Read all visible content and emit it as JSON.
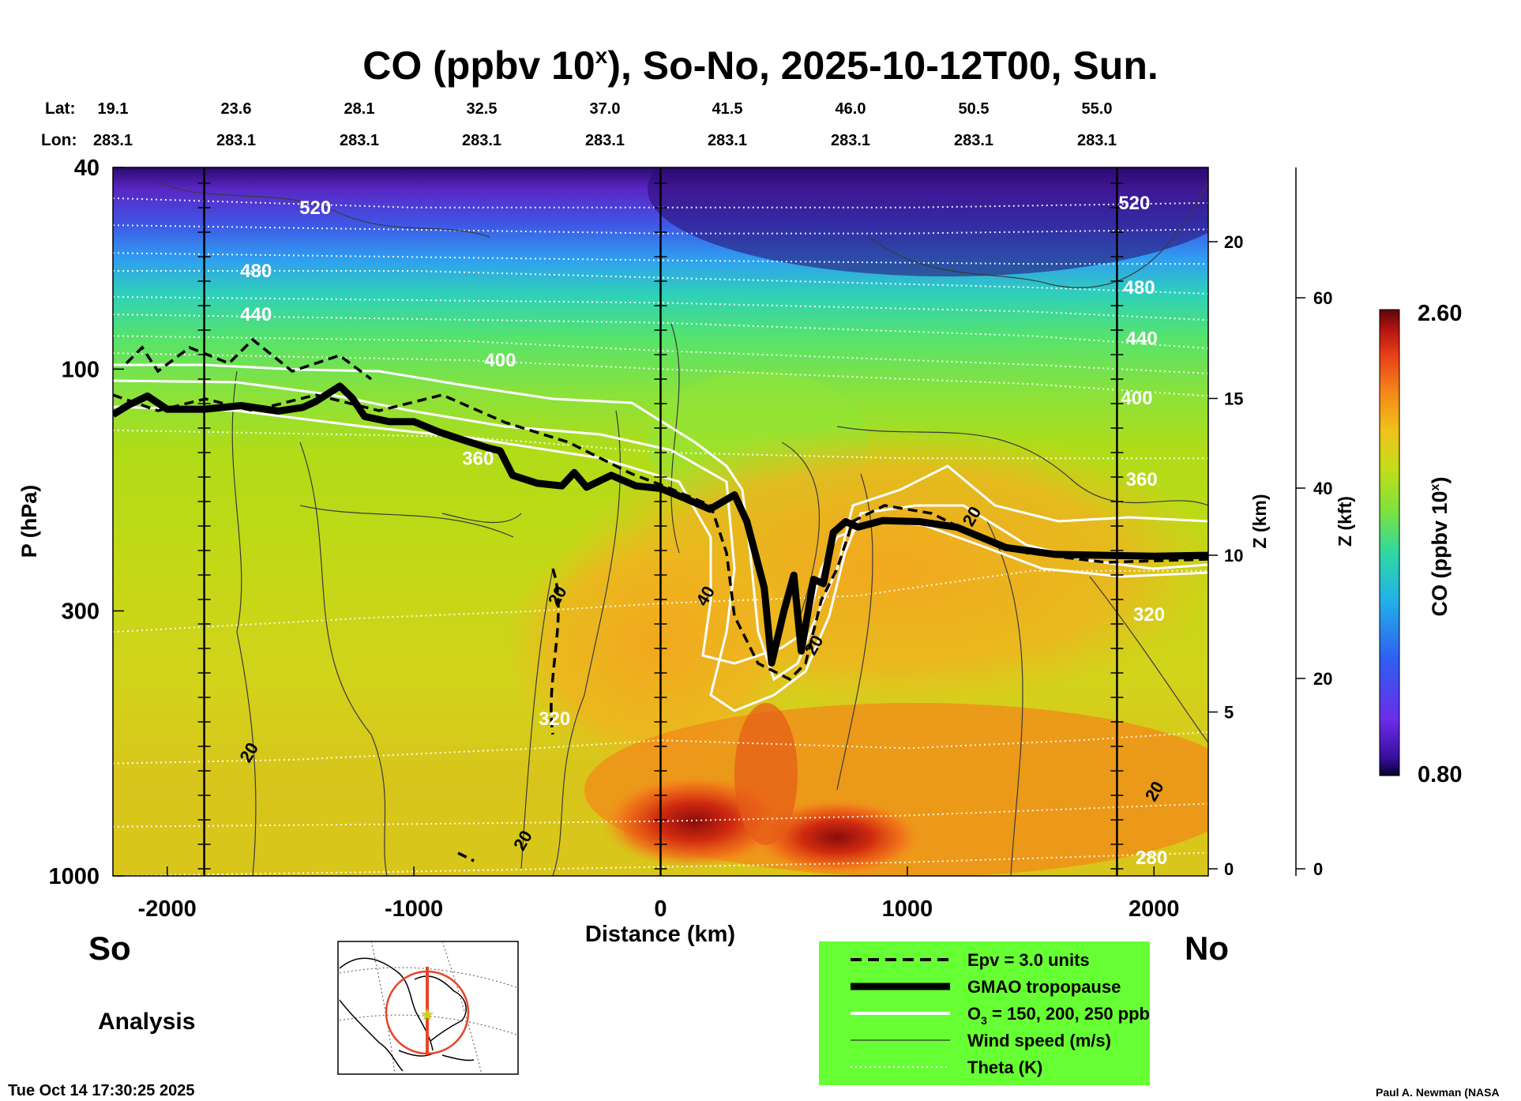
{
  "chart_data": {
    "type": "heatmap",
    "title": "CO (ppbv 10",
    "title_sup": "x",
    "title_rest": "), So-No, 2025-10-12T00, Sun.",
    "lat_label": "Lat:",
    "lon_label": "Lon:",
    "lats": [
      "19.1",
      "23.6",
      "28.1",
      "32.5",
      "37.0",
      "41.5",
      "46.0",
      "50.5",
      "55.0"
    ],
    "lons": [
      "283.1",
      "283.1",
      "283.1",
      "283.1",
      "283.1",
      "283.1",
      "283.1",
      "283.1",
      "283.1"
    ],
    "xlabel": "Distance (km)",
    "ylabel": "P (hPa)",
    "xlim": [
      -2220,
      2220
    ],
    "x_ticks": [
      -2000,
      -1000,
      0,
      1000,
      2000
    ],
    "x_tick_labels": [
      "-2000",
      "-1000",
      "0",
      "1000",
      "2000"
    ],
    "ylim_hpa": [
      1000,
      40
    ],
    "p_ticks": [
      40,
      100,
      300,
      1000
    ],
    "p_tick_labels": [
      "40",
      "100",
      "300",
      "1000"
    ],
    "z_km_label": "Z (km)",
    "z_km_ticks": [
      0,
      5,
      10,
      15,
      20
    ],
    "z_km_tick_labels": [
      "0",
      "5",
      "10",
      "15",
      "20"
    ],
    "z_kft_label": "Z (kft)",
    "z_kft_ticks": [
      0,
      20,
      40,
      60
    ],
    "z_kft_tick_labels": [
      "0",
      "20",
      "40",
      "60"
    ],
    "colorbar": {
      "label": "CO (ppbv 10",
      "label_sup": "x",
      "label_end": ")",
      "max_label": "2.60",
      "min_label": "0.80",
      "range": [
        0.8,
        2.6
      ]
    },
    "vertical_markers_km": [
      -1850,
      0,
      1850
    ],
    "theta_labels": [
      {
        "x_km": -1400,
        "p": 48,
        "text": "520"
      },
      {
        "x_km": 1920,
        "p": 47,
        "text": "520"
      },
      {
        "x_km": -1640,
        "p": 64,
        "text": "480"
      },
      {
        "x_km": 1940,
        "p": 69,
        "text": "480"
      },
      {
        "x_km": -1640,
        "p": 78,
        "text": "440"
      },
      {
        "x_km": 1950,
        "p": 87,
        "text": "440"
      },
      {
        "x_km": -650,
        "p": 96,
        "text": "400"
      },
      {
        "x_km": 1930,
        "p": 114,
        "text": "400"
      },
      {
        "x_km": -740,
        "p": 150,
        "text": "360"
      },
      {
        "x_km": 1950,
        "p": 165,
        "text": "360"
      },
      {
        "x_km": 1980,
        "p": 305,
        "text": "320"
      },
      {
        "x_km": -430,
        "p": 490,
        "text": "320"
      },
      {
        "x_km": 1990,
        "p": 920,
        "text": "280"
      }
    ],
    "wind_labels": [
      {
        "x_km": -1670,
        "p": 570,
        "text": "20"
      },
      {
        "x_km": -420,
        "p": 280,
        "text": "20"
      },
      {
        "x_km": -560,
        "p": 850,
        "text": "20"
      },
      {
        "x_km": 180,
        "p": 280,
        "text": "40"
      },
      {
        "x_km": 620,
        "p": 350,
        "text": "20"
      },
      {
        "x_km": 1260,
        "p": 195,
        "text": "20"
      },
      {
        "x_km": 2000,
        "p": 680,
        "text": "20"
      }
    ],
    "tropopause_path_km_hpa": [
      [
        -2220,
        123
      ],
      [
        -2160,
        118
      ],
      [
        -2080,
        113
      ],
      [
        -2000,
        120
      ],
      [
        -1850,
        120
      ],
      [
        -1700,
        118
      ],
      [
        -1550,
        121
      ],
      [
        -1450,
        119
      ],
      [
        -1400,
        116
      ],
      [
        -1300,
        108
      ],
      [
        -1250,
        114
      ],
      [
        -1200,
        124
      ],
      [
        -1100,
        127
      ],
      [
        -1000,
        127
      ],
      [
        -900,
        133
      ],
      [
        -800,
        138
      ],
      [
        -700,
        143
      ],
      [
        -650,
        145
      ],
      [
        -600,
        162
      ],
      [
        -500,
        168
      ],
      [
        -400,
        170
      ],
      [
        -350,
        160
      ],
      [
        -300,
        171
      ],
      [
        -200,
        162
      ],
      [
        -100,
        170
      ],
      [
        0,
        172
      ],
      [
        100,
        180
      ],
      [
        200,
        189
      ],
      [
        300,
        177
      ],
      [
        350,
        200
      ],
      [
        420,
        270
      ],
      [
        450,
        380
      ],
      [
        500,
        300
      ],
      [
        540,
        255
      ],
      [
        570,
        360
      ],
      [
        620,
        260
      ],
      [
        660,
        265
      ],
      [
        700,
        210
      ],
      [
        750,
        200
      ],
      [
        800,
        205
      ],
      [
        900,
        199
      ],
      [
        1050,
        200
      ],
      [
        1200,
        205
      ],
      [
        1400,
        225
      ],
      [
        1600,
        232
      ],
      [
        1800,
        233
      ],
      [
        2000,
        234
      ],
      [
        2220,
        233
      ]
    ],
    "legend": [
      {
        "label": "Epv = 3.0 units",
        "style": "dashed"
      },
      {
        "label": "GMAO tropopause",
        "style": "thick"
      },
      {
        "label": "O",
        "sub": "3",
        "label_rest": " = 150, 200, 250 ppb",
        "style": "white"
      },
      {
        "label": "Wind speed (m/s)",
        "style": "thin"
      },
      {
        "label": "Theta (K)",
        "style": "dotted"
      }
    ],
    "legend_bg": "#66ff33"
  },
  "footer": {
    "left_direction": "So",
    "right_direction": "No",
    "analysis_label": "Analysis",
    "timestamp": "Tue Oct 14 17:30:25 2025",
    "credit": "Paul A. Newman (NASA"
  },
  "inset_map": {
    "marker_color": "#e8452a"
  }
}
